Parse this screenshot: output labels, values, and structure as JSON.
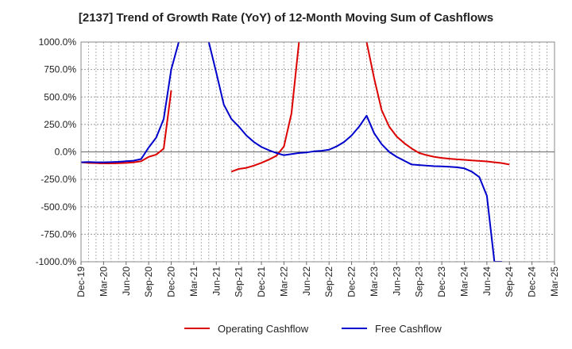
{
  "chart_data": {
    "type": "line",
    "title": "[2137]  Trend of Growth Rate (YoY) of 12-Month Moving Sum of Cashflows",
    "xlabel": "",
    "ylabel": "",
    "ylim": [
      -1000,
      1000
    ],
    "y_ticks": [
      1000,
      750,
      500,
      250,
      0,
      -250,
      -500,
      -750,
      -1000
    ],
    "y_tick_labels": [
      "1000.0%",
      "750.0%",
      "500.0%",
      "250.0%",
      "0.0%",
      "-250.0%",
      "-500.0%",
      "-750.0%",
      "-1000.0%"
    ],
    "x_tick_labels": [
      "Dec-19",
      "Mar-20",
      "Jun-20",
      "Sep-20",
      "Dec-20",
      "Mar-21",
      "Jun-21",
      "Sep-21",
      "Dec-21",
      "Mar-22",
      "Jun-22",
      "Sep-22",
      "Dec-22",
      "Mar-23",
      "Jun-23",
      "Sep-23",
      "Dec-23",
      "Mar-24",
      "Jun-24",
      "Sep-24",
      "Dec-24",
      "Mar-25"
    ],
    "grid": true,
    "legend_position": "bottom",
    "series": [
      {
        "name": "Operating Cashflow",
        "color": "#dd0000",
        "segments": [
          {
            "x": [
              "2019-12",
              "2020-01",
              "2020-02",
              "2020-03",
              "2020-04",
              "2020-05",
              "2020-06",
              "2020-07",
              "2020-08",
              "2020-09",
              "2020-10",
              "2020-11",
              "2020-12"
            ],
            "y": [
              -95,
              -100,
              -102,
              -105,
              -105,
              -103,
              -100,
              -95,
              -85,
              -45,
              -25,
              30,
              560
            ]
          },
          {
            "x": [
              "2021-08",
              "2021-09",
              "2021-10",
              "2021-11",
              "2021-12",
              "2022-01",
              "2022-02",
              "2022-03",
              "2022-04",
              "2022-05"
            ],
            "y": [
              -180,
              -155,
              -145,
              -125,
              -100,
              -70,
              -35,
              50,
              350,
              1000
            ]
          },
          {
            "x": [
              "2023-02",
              "2023-03",
              "2023-04",
              "2023-05",
              "2023-06",
              "2023-07",
              "2023-08",
              "2023-09",
              "2023-10",
              "2023-11",
              "2023-12",
              "2024-01",
              "2024-02",
              "2024-03",
              "2024-04",
              "2024-05",
              "2024-06",
              "2024-07",
              "2024-08",
              "2024-09"
            ],
            "y": [
              1000,
              670,
              380,
              230,
              140,
              80,
              30,
              -10,
              -30,
              -45,
              -55,
              -62,
              -68,
              -72,
              -78,
              -82,
              -87,
              -95,
              -102,
              -115
            ]
          }
        ]
      },
      {
        "name": "Free Cashflow",
        "color": "#0000cc",
        "segments": [
          {
            "x": [
              "2019-12",
              "2020-01",
              "2020-02",
              "2020-03",
              "2020-04",
              "2020-05",
              "2020-06",
              "2020-07",
              "2020-08",
              "2020-09",
              "2020-10",
              "2020-11",
              "2020-12",
              "2021-01"
            ],
            "y": [
              -95,
              -92,
              -95,
              -95,
              -93,
              -90,
              -85,
              -80,
              -65,
              40,
              130,
              300,
              750,
              1000
            ]
          },
          {
            "x": [
              "2021-05",
              "2021-06",
              "2021-07",
              "2021-08",
              "2021-09",
              "2021-10",
              "2021-11",
              "2021-12",
              "2022-01",
              "2022-02",
              "2022-03",
              "2022-04",
              "2022-05",
              "2022-06",
              "2022-07",
              "2022-08",
              "2022-09",
              "2022-10",
              "2022-11",
              "2022-12",
              "2023-01",
              "2023-02",
              "2023-03",
              "2023-04",
              "2023-05",
              "2023-06",
              "2023-07",
              "2023-08",
              "2023-09",
              "2023-10",
              "2023-11",
              "2023-12",
              "2024-01",
              "2024-02",
              "2024-03",
              "2024-04",
              "2024-05",
              "2024-06",
              "2024-07",
              "2024-08"
            ],
            "y": [
              1000,
              720,
              430,
              300,
              230,
              150,
              90,
              45,
              15,
              -10,
              -30,
              -20,
              -10,
              -5,
              5,
              10,
              20,
              50,
              90,
              150,
              230,
              330,
              170,
              70,
              0,
              -45,
              -80,
              -115,
              -120,
              -125,
              -130,
              -132,
              -135,
              -140,
              -150,
              -180,
              -230,
              -400,
              -1000,
              -1000
            ]
          }
        ]
      }
    ]
  }
}
